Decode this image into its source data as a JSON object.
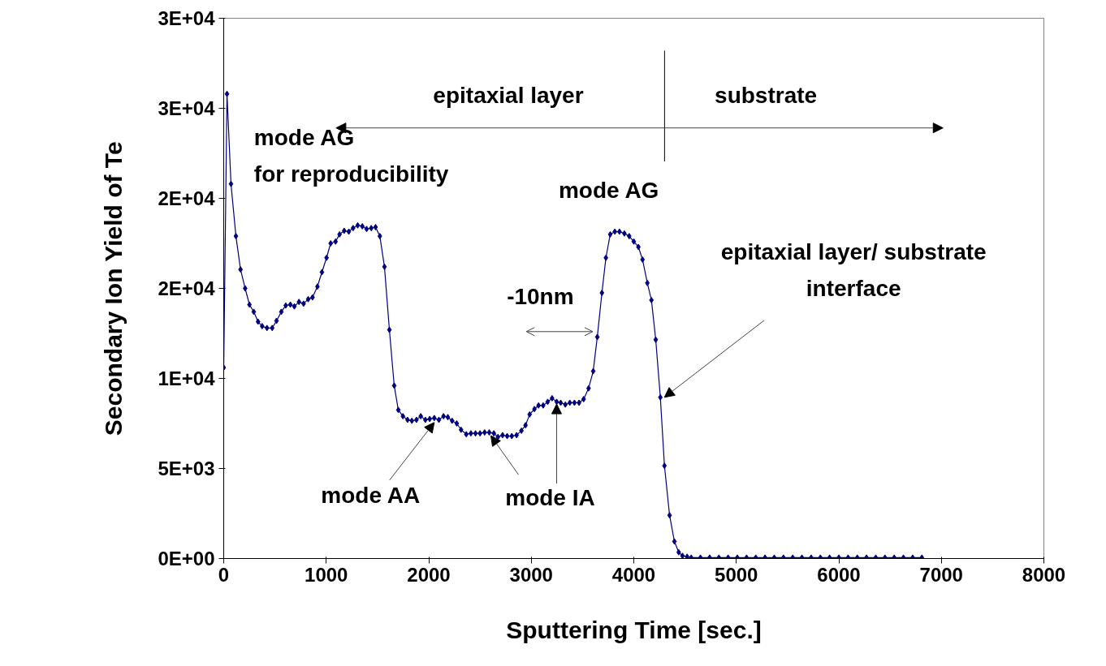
{
  "chart_data": {
    "type": "line",
    "xlabel": "Sputtering Time [sec.]",
    "ylabel": "Secondary Ion Yield of Te",
    "x": [
      0,
      32,
      71,
      119,
      164,
      209,
      251,
      293,
      335,
      375,
      422,
      473,
      515,
      562,
      605,
      650,
      689,
      734,
      779,
      824,
      866,
      914,
      958,
      1003,
      1043,
      1091,
      1130,
      1175,
      1220,
      1262,
      1307,
      1352,
      1394,
      1439,
      1481,
      1523,
      1568,
      1616,
      1663,
      1703,
      1748,
      1793,
      1835,
      1880,
      1922,
      1967,
      2009,
      2054,
      2099,
      2144,
      2186,
      2228,
      2273,
      2315,
      2366,
      2411,
      2456,
      2500,
      2545,
      2590,
      2635,
      2675,
      2720,
      2765,
      2810,
      2857,
      2904,
      2944,
      2984,
      3031,
      3071,
      3116,
      3160,
      3203,
      3248,
      3287,
      3332,
      3376,
      3421,
      3466,
      3511,
      3559,
      3604,
      3644,
      3689,
      3728,
      3770,
      3815,
      3860,
      3908,
      3955,
      4000,
      4045,
      4085,
      4132,
      4172,
      4214,
      4259,
      4299,
      4349,
      4396,
      4438,
      4475,
      4520,
      4560,
      4650,
      4740,
      4830,
      4920,
      5010,
      5100,
      5190,
      5280,
      5370,
      5460,
      5550,
      5640,
      5730,
      5820,
      5910,
      6000,
      6090,
      6180,
      6270,
      6360,
      6450,
      6540,
      6630,
      6720,
      6810
    ],
    "values": [
      10600,
      25800,
      20800,
      17900,
      16050,
      15000,
      14100,
      13700,
      13150,
      12900,
      12800,
      12800,
      13200,
      13700,
      14050,
      14100,
      14000,
      14250,
      14150,
      14400,
      14500,
      15100,
      15900,
      16700,
      17500,
      17600,
      18000,
      18200,
      18150,
      18350,
      18500,
      18450,
      18300,
      18350,
      18400,
      17900,
      16200,
      12700,
      9600,
      8250,
      7900,
      7700,
      7650,
      7700,
      7900,
      7700,
      7750,
      7800,
      7700,
      7900,
      7850,
      7650,
      7500,
      7150,
      6900,
      6950,
      6950,
      6950,
      7000,
      7000,
      6950,
      6750,
      6850,
      6800,
      6800,
      6850,
      7100,
      7400,
      8000,
      8300,
      8500,
      8500,
      8700,
      8900,
      8700,
      8650,
      8550,
      8650,
      8650,
      8650,
      8850,
      9450,
      10400,
      12300,
      14750,
      16700,
      18000,
      18150,
      18150,
      18050,
      17900,
      17600,
      17300,
      16600,
      15300,
      14350,
      12150,
      8950,
      5150,
      2400,
      950,
      350,
      150,
      100,
      50,
      50,
      50,
      50,
      50,
      50,
      50,
      50,
      50,
      50,
      50,
      50,
      50,
      50,
      50,
      50,
      50,
      50,
      50,
      50,
      50,
      50,
      50,
      50,
      50,
      50
    ],
    "color": "#000080",
    "marker": "diamond",
    "line_style": "solid",
    "grid": false,
    "xlim": [
      0,
      8000
    ],
    "xticks": [
      0,
      1000,
      2000,
      3000,
      4000,
      5000,
      6000,
      7000,
      8000
    ],
    "ylim": [
      0,
      30000
    ],
    "yticks": [
      {
        "value": 0,
        "label": "0E+00"
      },
      {
        "value": 5000,
        "label": "5E+03"
      },
      {
        "value": 10000,
        "label": "1E+04"
      },
      {
        "value": 15000,
        "label": "2E+04"
      },
      {
        "value": 20000,
        "label": "2E+04"
      },
      {
        "value": 25000,
        "label": "3E+04"
      },
      {
        "value": 30000,
        "label": "3E+04"
      }
    ],
    "ref_lines": [
      {
        "axis": "x",
        "value": 4300
      }
    ],
    "annotations": [
      "epitaxial layer",
      "substrate",
      "mode AG\nfor reproducibility",
      "mode AG",
      "-10nm",
      {
        "text": "epitaxial layer/ substrate\ninterface",
        "x": 4259,
        "y": 8950
      },
      {
        "text": "mode AA",
        "x": 2054,
        "y": 7780
      },
      {
        "text": "mode IA",
        "x": 2590,
        "y": 7000
      }
    ]
  }
}
